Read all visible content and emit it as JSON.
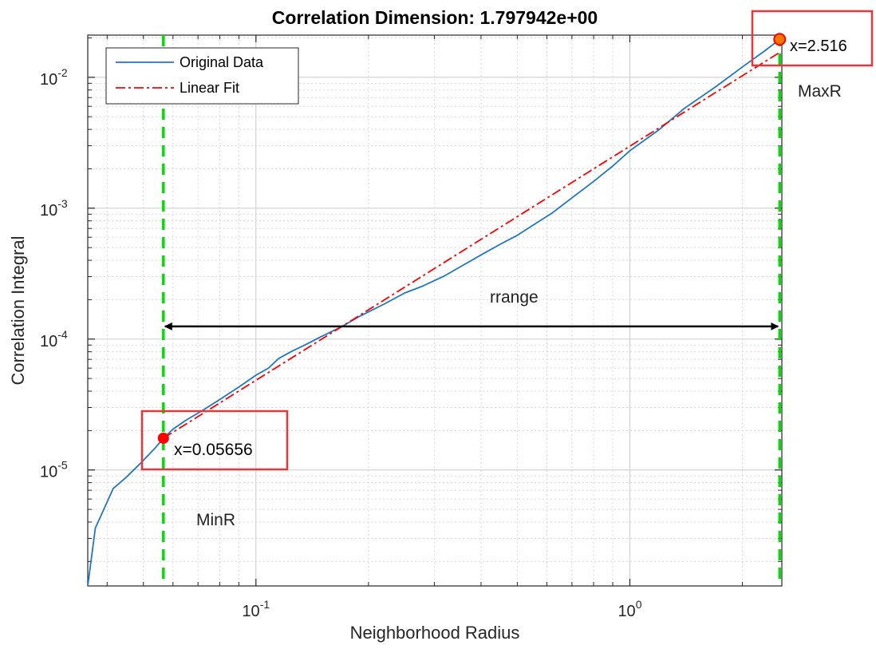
{
  "chart_data": {
    "type": "line",
    "title": "Correlation Dimension: 1.797942e+00",
    "xlabel": "Neighborhood Radius",
    "ylabel": "Correlation Integral",
    "xscale": "log",
    "yscale": "log",
    "xlim": [
      0.0355,
      2.55
    ],
    "ylim": [
      1.3e-06,
      0.021
    ],
    "grid": true,
    "minor_grid": true,
    "legend_location": "top-left",
    "x_ticks": [
      {
        "value": 0.1,
        "base": "10",
        "exp": "-1"
      },
      {
        "value": 1,
        "base": "10",
        "exp": "0"
      }
    ],
    "y_ticks": [
      {
        "value": 1e-05,
        "base": "10",
        "exp": "-5"
      },
      {
        "value": 0.0001,
        "base": "10",
        "exp": "-4"
      },
      {
        "value": 0.001,
        "base": "10",
        "exp": "-3"
      },
      {
        "value": 0.01,
        "base": "10",
        "exp": "-2"
      }
    ],
    "series": [
      {
        "name": "Original Data",
        "color": "#1f77c4",
        "style": "solid",
        "points": [
          [
            0.0355,
            1.3e-06
          ],
          [
            0.0372,
            3.6e-06
          ],
          [
            0.0415,
            7.2e-06
          ],
          [
            0.045,
            8.8e-06
          ],
          [
            0.0495,
            1.15e-05
          ],
          [
            0.0535,
            1.45e-05
          ],
          [
            0.0566,
            1.75e-05
          ],
          [
            0.06,
            2.05e-05
          ],
          [
            0.065,
            2.4e-05
          ],
          [
            0.072,
            2.85e-05
          ],
          [
            0.08,
            3.45e-05
          ],
          [
            0.09,
            4.3e-05
          ],
          [
            0.1,
            5.3e-05
          ],
          [
            0.108,
            6e-05
          ],
          [
            0.115,
            7.1e-05
          ],
          [
            0.125,
            8.1e-05
          ],
          [
            0.135,
            9e-05
          ],
          [
            0.15,
            0.000105
          ],
          [
            0.17,
            0.000125
          ],
          [
            0.19,
            0.00015
          ],
          [
            0.22,
            0.000185
          ],
          [
            0.25,
            0.000225
          ],
          [
            0.28,
            0.000255
          ],
          [
            0.32,
            0.000305
          ],
          [
            0.36,
            0.00037
          ],
          [
            0.4,
            0.00044
          ],
          [
            0.45,
            0.00053
          ],
          [
            0.5,
            0.00062
          ],
          [
            0.55,
            0.00074
          ],
          [
            0.62,
            0.00092
          ],
          [
            0.7,
            0.0012
          ],
          [
            0.8,
            0.0016
          ],
          [
            0.9,
            0.0021
          ],
          [
            1.0,
            0.00275
          ],
          [
            1.2,
            0.004
          ],
          [
            1.4,
            0.0058
          ],
          [
            1.7,
            0.0085
          ],
          [
            2.0,
            0.012
          ],
          [
            2.3,
            0.016
          ],
          [
            2.516,
            0.0195
          ]
        ]
      },
      {
        "name": "Linear Fit",
        "color": "#ff0000",
        "style": "dash-dot",
        "points": [
          [
            0.0566,
            1.75e-05
          ],
          [
            2.516,
            0.0155
          ]
        ]
      }
    ],
    "annotations": {
      "vlines": [
        {
          "x": 0.05656,
          "color": "#00e000"
        },
        {
          "x": 2.516,
          "color": "#00e000"
        }
      ],
      "markers": [
        {
          "x": 0.05656,
          "y": 1.75e-05,
          "color": "#ff0000",
          "label": "x=0.05656"
        },
        {
          "x": 2.516,
          "y": 0.0195,
          "color": "#ff7700",
          "label": "x=2.516"
        }
      ],
      "texts": {
        "min": "MinR",
        "max": "MaxR",
        "range": "rrange"
      },
      "arrow": {
        "x1": 0.05656,
        "x2": 2.516,
        "y": 0.000125,
        "label": "rrange"
      }
    }
  }
}
